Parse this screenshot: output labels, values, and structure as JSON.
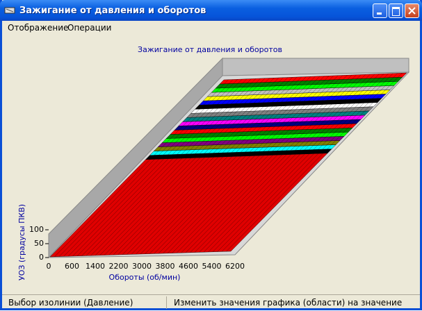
{
  "window": {
    "title": "Зажигание от давления и оборотов"
  },
  "menu": [
    "Отображение",
    "Операции"
  ],
  "chart": {
    "title": "Зажигание от давления и оборотов",
    "y_label": "УОЗ (градусы ПКВ)",
    "x_label": "Обороты (об/мин)",
    "y_ticks": [
      0,
      50,
      100
    ],
    "x_ticks": [
      0,
      600,
      1400,
      2200,
      3000,
      3800,
      4600,
      5400,
      6200
    ]
  },
  "status": [
    "Выбор изолинии (Давление)",
    "Изменить значения графика (области) на значение"
  ]
}
